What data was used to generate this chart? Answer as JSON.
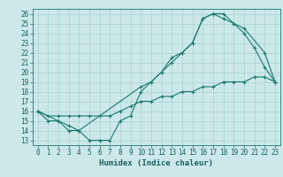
{
  "title": "",
  "xlabel": "Humidex (Indice chaleur)",
  "bg_color": "#cce8e8",
  "line_color": "#1a7a6e",
  "xlim": [
    -0.5,
    23.5
  ],
  "ylim": [
    12.5,
    26.5
  ],
  "xticks": [
    0,
    1,
    2,
    3,
    4,
    5,
    6,
    7,
    8,
    9,
    10,
    11,
    12,
    13,
    14,
    15,
    16,
    17,
    18,
    19,
    20,
    21,
    22,
    23
  ],
  "yticks": [
    13,
    14,
    15,
    16,
    17,
    18,
    19,
    20,
    21,
    22,
    23,
    24,
    25,
    26
  ],
  "line1_x": [
    0,
    1,
    2,
    3,
    4,
    5,
    6,
    7,
    8,
    9,
    10,
    11,
    12,
    13,
    14,
    15,
    16,
    17,
    18,
    19,
    20,
    21,
    22,
    23
  ],
  "line1_y": [
    16,
    15,
    15,
    14,
    14,
    13,
    13,
    13,
    15,
    15.5,
    18,
    19,
    20,
    21.5,
    22,
    23,
    25.5,
    26,
    26,
    25,
    24,
    22.5,
    20.5,
    19
  ],
  "line2_x": [
    0,
    2,
    3,
    4,
    10,
    11,
    12,
    13,
    14,
    15,
    16,
    17,
    18,
    19,
    20,
    22,
    23
  ],
  "line2_y": [
    16,
    15,
    14.5,
    14,
    18.5,
    19,
    20,
    21,
    22,
    23,
    25.5,
    26,
    25.5,
    25,
    24.5,
    22,
    19
  ],
  "line3_x": [
    0,
    1,
    2,
    3,
    4,
    5,
    6,
    7,
    8,
    9,
    10,
    11,
    12,
    13,
    14,
    15,
    16,
    17,
    18,
    19,
    20,
    21,
    22,
    23
  ],
  "line3_y": [
    16,
    15.5,
    15.5,
    15.5,
    15.5,
    15.5,
    15.5,
    15.5,
    16,
    16.5,
    17,
    17,
    17.5,
    17.5,
    18,
    18,
    18.5,
    18.5,
    19,
    19,
    19,
    19.5,
    19.5,
    19
  ],
  "label_color": "#1a6060",
  "grid_color": "#a0cccc",
  "spine_color": "#1a7a6e",
  "tick_fontsize": 5.5,
  "xlabel_fontsize": 6.5
}
